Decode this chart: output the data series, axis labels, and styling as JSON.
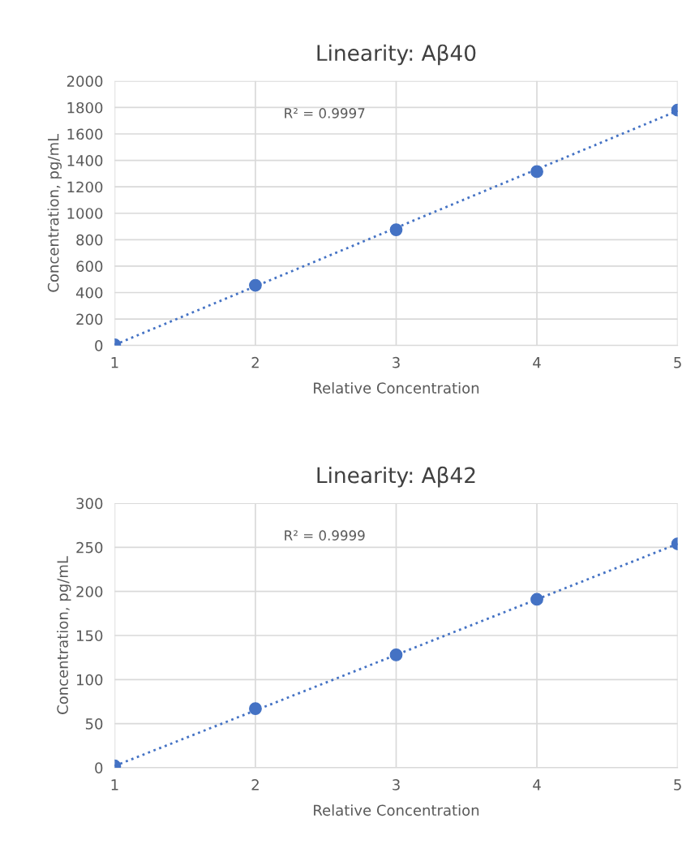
{
  "chart_data": [
    {
      "type": "scatter",
      "title": "Linearity: Aβ40",
      "xlabel": "Relative Concentration",
      "ylabel": "Concentration, pg/mL",
      "xlim": [
        1,
        5
      ],
      "xticks": [
        1,
        2,
        3,
        4,
        5
      ],
      "ylim": [
        0,
        2000
      ],
      "yticks": [
        0,
        200,
        400,
        600,
        800,
        1000,
        1200,
        1400,
        1600,
        1800,
        2000
      ],
      "grid": true,
      "annotations": [
        "R² = 0.9997"
      ],
      "series": [
        {
          "color": "#4472c4",
          "marker": "circle",
          "x": [
            1,
            2,
            3,
            4,
            5
          ],
          "values": [
            5,
            455,
            875,
            1315,
            1780
          ]
        },
        {
          "type": "line",
          "color": "#4472c4",
          "line_style": "dotted",
          "marker": "none",
          "x": [
            1,
            5
          ],
          "values": [
            5,
            1775
          ]
        }
      ]
    },
    {
      "type": "scatter",
      "title": "Linearity: Aβ42",
      "xlabel": "Relative Concentration",
      "ylabel": "Concentration, pg/mL",
      "xlim": [
        1,
        5
      ],
      "xticks": [
        1,
        2,
        3,
        4,
        5
      ],
      "ylim": [
        0,
        300
      ],
      "yticks": [
        0,
        50,
        100,
        150,
        200,
        250,
        300
      ],
      "grid": true,
      "annotations": [
        "R² = 0.9999"
      ],
      "series": [
        {
          "color": "#4472c4",
          "marker": "circle",
          "x": [
            1,
            2,
            3,
            4,
            5
          ],
          "values": [
            2,
            67,
            128,
            191,
            254
          ]
        },
        {
          "type": "line",
          "color": "#4472c4",
          "line_style": "dotted",
          "marker": "none",
          "x": [
            1,
            5
          ],
          "values": [
            2,
            254
          ]
        }
      ]
    }
  ]
}
